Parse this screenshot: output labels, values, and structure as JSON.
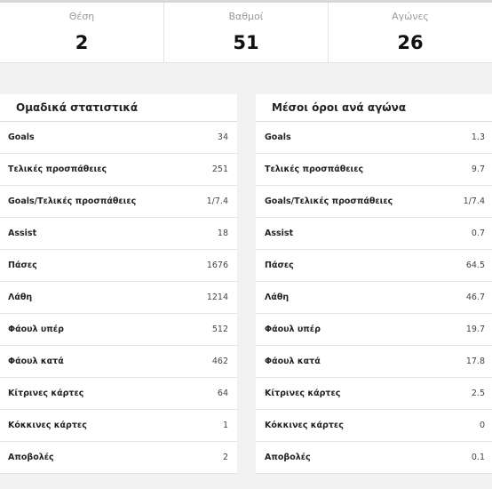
{
  "summary": [
    {
      "label": "Θέση",
      "value": "2"
    },
    {
      "label": "Βαθμοί",
      "value": "51"
    },
    {
      "label": "Αγώνες",
      "value": "26"
    }
  ],
  "team_stats": {
    "title": "Ομαδικά στατιστικά",
    "rows": [
      {
        "label": "Goals",
        "value": "34"
      },
      {
        "label": "Τελικές προσπάθειες",
        "value": "251"
      },
      {
        "label": "Goals/Τελικές προσπάθειες",
        "value": "1/7.4"
      },
      {
        "label": "Assist",
        "value": "18"
      },
      {
        "label": "Πάσες",
        "value": "1676"
      },
      {
        "label": "Λάθη",
        "value": "1214"
      },
      {
        "label": "Φάουλ υπέρ",
        "value": "512"
      },
      {
        "label": "Φάουλ κατά",
        "value": "462"
      },
      {
        "label": "Κίτρινες κάρτες",
        "value": "64"
      },
      {
        "label": "Κόκκινες κάρτες",
        "value": "1"
      },
      {
        "label": "Αποβολές",
        "value": "2"
      }
    ]
  },
  "averages": {
    "title": "Μέσοι όροι ανά αγώνα",
    "rows": [
      {
        "label": "Goals",
        "value": "1.3"
      },
      {
        "label": "Τελικές προσπάθειες",
        "value": "9.7"
      },
      {
        "label": "Goals/Τελικές προσπάθειες",
        "value": "1/7.4"
      },
      {
        "label": "Assist",
        "value": "0.7"
      },
      {
        "label": "Πάσες",
        "value": "64.5"
      },
      {
        "label": "Λάθη",
        "value": "46.7"
      },
      {
        "label": "Φάουλ υπέρ",
        "value": "19.7"
      },
      {
        "label": "Φάουλ κατά",
        "value": "17.8"
      },
      {
        "label": "Κίτρινες κάρτες",
        "value": "2.5"
      },
      {
        "label": "Κόκκινες κάρτες",
        "value": "0"
      },
      {
        "label": "Αποβολές",
        "value": "0.1"
      }
    ]
  }
}
